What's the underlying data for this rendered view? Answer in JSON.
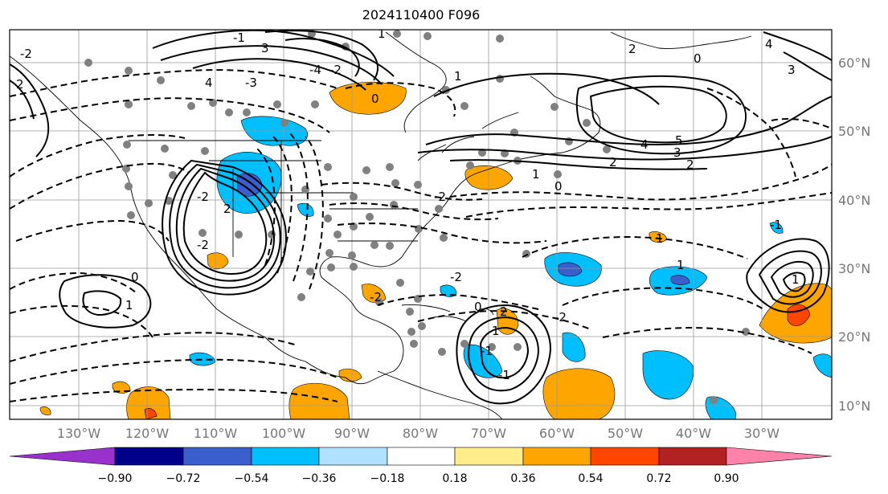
{
  "title": "2024110400 F096",
  "map": {
    "longitude_labels": [
      "130°W",
      "120°W",
      "110°W",
      "100°W",
      "90°W",
      "80°W",
      "70°W",
      "60°W",
      "50°W",
      "40°W",
      "30°W"
    ],
    "latitude_labels": [
      "60°N",
      "50°N",
      "40°N",
      "30°N",
      "20°N",
      "10°N"
    ],
    "contour_labels": [
      "4",
      "3",
      "0",
      "1",
      "2",
      "4",
      "5",
      "3",
      "2",
      "2",
      "0",
      "-2",
      "2",
      "-2",
      "0",
      "-2",
      "1",
      "-2",
      "0",
      "1",
      "-1",
      "-2",
      "-1",
      "1",
      "2",
      "0",
      "1",
      "-1",
      "4",
      "3",
      "2",
      "1",
      "1",
      "-2",
      "-1",
      "1",
      "-2",
      "-4",
      "-3",
      "-2"
    ],
    "colors": {
      "land_outline": "#000000",
      "grid": "#999999",
      "station_dots": "#808080"
    }
  },
  "colorbar": {
    "tick_labels": [
      "−0.90",
      "−0.72",
      "−0.54",
      "−0.36",
      "−0.18",
      "0.18",
      "0.36",
      "0.54",
      "0.72",
      "0.90"
    ],
    "colors": [
      "#9932cc",
      "#00008b",
      "#3a5fcd",
      "#00bfff",
      "#b0e2ff",
      "#ffffff",
      "#ffec8b",
      "#ffa500",
      "#ff4500",
      "#b22222",
      "#ff82ab"
    ]
  }
}
